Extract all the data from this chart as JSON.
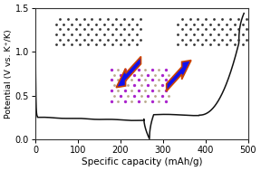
{
  "xlim": [
    0,
    500
  ],
  "ylim": [
    0.0,
    1.5
  ],
  "xlabel": "Specific capacity (mAh/g)",
  "ylabel": "Potential (V vs. K⁺/K)",
  "xticks": [
    0,
    100,
    200,
    300,
    400,
    500
  ],
  "yticks": [
    0.0,
    0.5,
    1.0,
    1.5
  ],
  "curve_color": "#111111",
  "bg_color": "#ffffff",
  "dot_color_graphene": "#333333",
  "dot_color_purple": "#aa22cc",
  "dot_color_tan": "#b8a88a",
  "arrow_fc": "#1111ee",
  "arrow_ec": "#cc4400",
  "figsize": [
    2.88,
    1.89
  ],
  "dpi": 100
}
